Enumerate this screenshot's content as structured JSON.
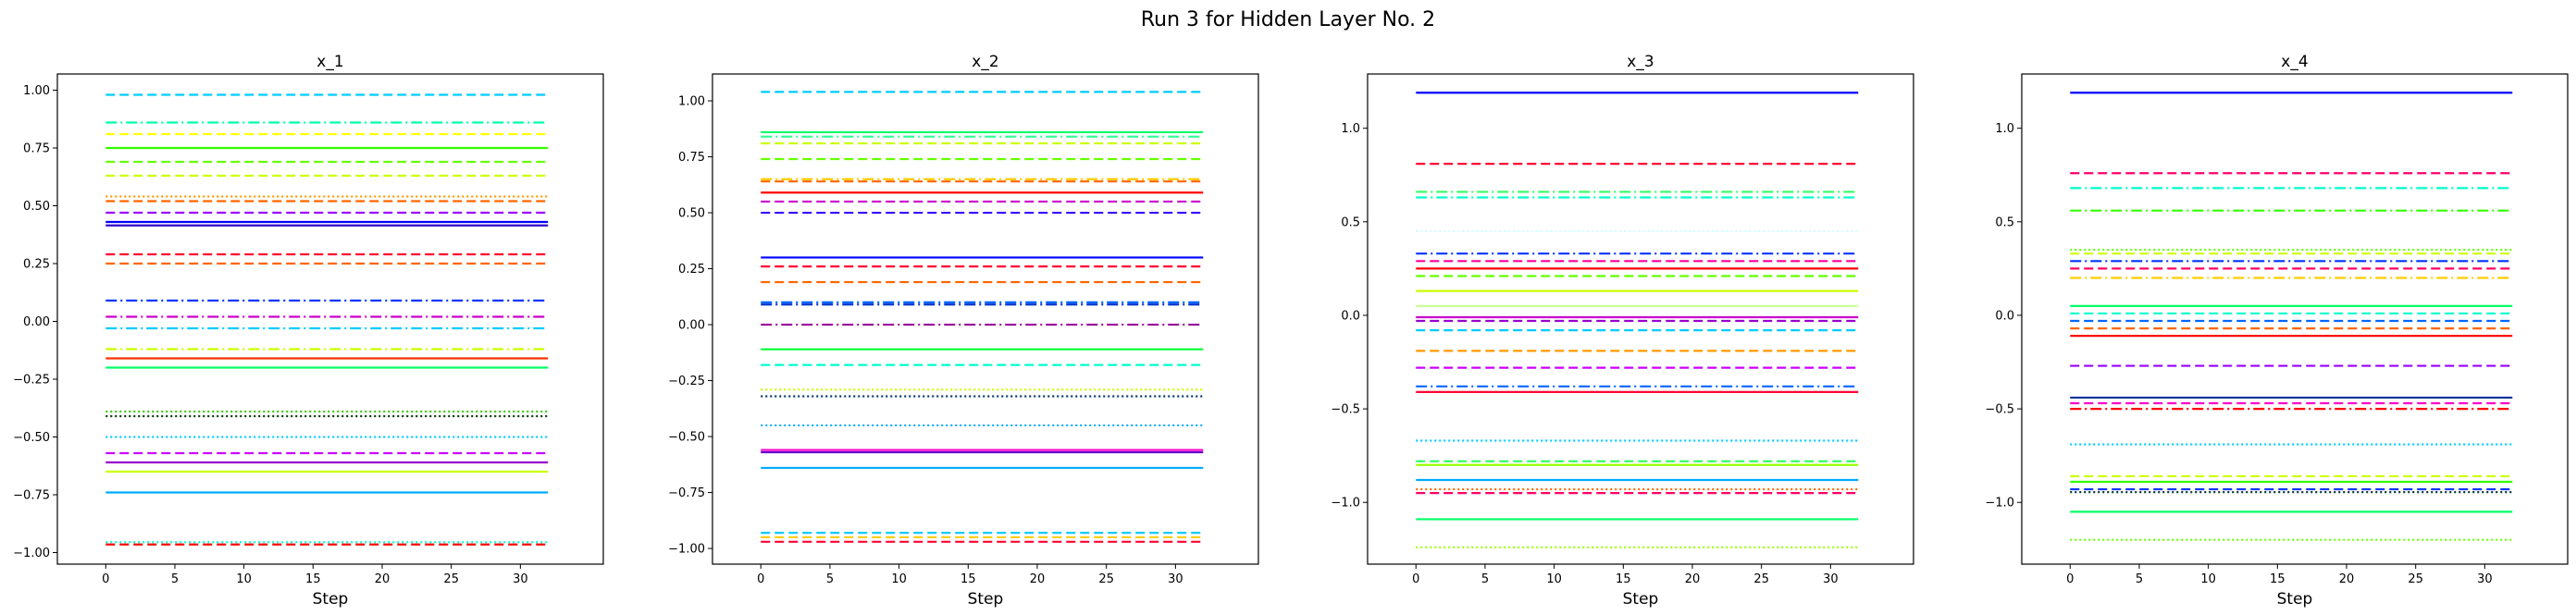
{
  "figure": {
    "suptitle": "Run 3 for Hidden Layer No. 2"
  },
  "chart_data": [
    {
      "type": "line",
      "title": "x_1",
      "xlabel": "Step",
      "ylabel": "",
      "xlim": [
        -3.5,
        36
      ],
      "ylim": [
        -1.05,
        1.07
      ],
      "xticks": [
        0,
        5,
        10,
        15,
        20,
        25,
        30
      ],
      "yticks": [
        -1.0,
        -0.75,
        -0.5,
        -0.25,
        0.0,
        0.25,
        0.5,
        0.75,
        1.0
      ],
      "ytick_labels": [
        "−1.00",
        "−0.75",
        "−0.50",
        "−0.25",
        "0.00",
        "0.25",
        "0.50",
        "0.75",
        "1.00"
      ],
      "x_range": [
        0,
        32
      ],
      "series": [
        {
          "value": 0.98,
          "color": "#00ccff",
          "dash": "dashed"
        },
        {
          "value": 0.86,
          "color": "#00ffaa",
          "dash": "dashdot"
        },
        {
          "value": 0.81,
          "color": "#ffff00",
          "dash": "dashed"
        },
        {
          "value": 0.75,
          "color": "#33ff00",
          "dash": "solid"
        },
        {
          "value": 0.69,
          "color": "#66ff00",
          "dash": "dashed"
        },
        {
          "value": 0.63,
          "color": "#ccff00",
          "dash": "dashed"
        },
        {
          "value": 0.54,
          "color": "#ff9900",
          "dash": "dotted"
        },
        {
          "value": 0.52,
          "color": "#ff6600",
          "dash": "dashed"
        },
        {
          "value": 0.47,
          "color": "#9900ff",
          "dash": "dashed"
        },
        {
          "value": 0.43,
          "color": "#0000ff",
          "dash": "solid"
        },
        {
          "value": 0.415,
          "color": "#3300cc",
          "dash": "solid"
        },
        {
          "value": 0.29,
          "color": "#ff0033",
          "dash": "dashed"
        },
        {
          "value": 0.25,
          "color": "#ff6600",
          "dash": "dashed"
        },
        {
          "value": 0.09,
          "color": "#0033ff",
          "dash": "dashdot"
        },
        {
          "value": 0.02,
          "color": "#cc00cc",
          "dash": "dashdot"
        },
        {
          "value": -0.03,
          "color": "#00ccff",
          "dash": "dashdot"
        },
        {
          "value": -0.12,
          "color": "#ccff00",
          "dash": "dashdot"
        },
        {
          "value": -0.16,
          "color": "#ff3300",
          "dash": "solid"
        },
        {
          "value": -0.2,
          "color": "#00ff66",
          "dash": "solid"
        },
        {
          "value": -0.39,
          "color": "#33cc00",
          "dash": "dotted"
        },
        {
          "value": -0.41,
          "color": "#003300",
          "dash": "dotted"
        },
        {
          "value": -0.5,
          "color": "#00ccff",
          "dash": "dotted"
        },
        {
          "value": -0.57,
          "color": "#cc00ff",
          "dash": "dashed"
        },
        {
          "value": -0.61,
          "color": "#9900cc",
          "dash": "solid"
        },
        {
          "value": -0.65,
          "color": "#ccff00",
          "dash": "solid"
        },
        {
          "value": -0.74,
          "color": "#00aaff",
          "dash": "solid"
        },
        {
          "value": -0.955,
          "color": "#00ffcc",
          "dash": "dotted"
        },
        {
          "value": -0.965,
          "color": "#ff0000",
          "dash": "dashed"
        }
      ]
    },
    {
      "type": "line",
      "title": "x_2",
      "xlabel": "Step",
      "ylabel": "",
      "xlim": [
        -3.5,
        36
      ],
      "ylim": [
        -1.07,
        1.12
      ],
      "xticks": [
        0,
        5,
        10,
        15,
        20,
        25,
        30
      ],
      "yticks": [
        -1.0,
        -0.75,
        -0.5,
        -0.25,
        0.0,
        0.25,
        0.5,
        0.75,
        1.0
      ],
      "ytick_labels": [
        "−1.00",
        "−0.75",
        "−0.50",
        "−0.25",
        "0.00",
        "0.25",
        "0.50",
        "0.75",
        "1.00"
      ],
      "x_range": [
        0,
        32
      ],
      "series": [
        {
          "value": 1.04,
          "color": "#00ccff",
          "dash": "dashed"
        },
        {
          "value": 0.86,
          "color": "#00ff66",
          "dash": "solid"
        },
        {
          "value": 0.84,
          "color": "#33ff99",
          "dash": "dashdot"
        },
        {
          "value": 0.81,
          "color": "#ccff00",
          "dash": "dashed"
        },
        {
          "value": 0.74,
          "color": "#66ff00",
          "dash": "dashed"
        },
        {
          "value": 0.65,
          "color": "#ffcc00",
          "dash": "dashdot"
        },
        {
          "value": 0.64,
          "color": "#ff6600",
          "dash": "dashed"
        },
        {
          "value": 0.59,
          "color": "#ff0000",
          "dash": "solid"
        },
        {
          "value": 0.55,
          "color": "#cc00cc",
          "dash": "dashed"
        },
        {
          "value": 0.5,
          "color": "#3300ff",
          "dash": "dashed"
        },
        {
          "value": 0.3,
          "color": "#0000ff",
          "dash": "solid"
        },
        {
          "value": 0.26,
          "color": "#ff0033",
          "dash": "dashed"
        },
        {
          "value": 0.19,
          "color": "#ff6600",
          "dash": "dashed"
        },
        {
          "value": 0.1,
          "color": "#0066ff",
          "dash": "dashdot"
        },
        {
          "value": 0.09,
          "color": "#0033cc",
          "dash": "dashdot"
        },
        {
          "value": 0.0,
          "color": "#990099",
          "dash": "dashdot"
        },
        {
          "value": -0.11,
          "color": "#00ff33",
          "dash": "solid"
        },
        {
          "value": -0.18,
          "color": "#00ffcc",
          "dash": "dashed"
        },
        {
          "value": -0.29,
          "color": "#ccff00",
          "dash": "dotted"
        },
        {
          "value": -0.32,
          "color": "#003366",
          "dash": "dotted"
        },
        {
          "value": -0.45,
          "color": "#00aaff",
          "dash": "dotted"
        },
        {
          "value": -0.56,
          "color": "#ff00cc",
          "dash": "solid"
        },
        {
          "value": -0.57,
          "color": "#6600cc",
          "dash": "solid"
        },
        {
          "value": -0.64,
          "color": "#00aaff",
          "dash": "solid"
        },
        {
          "value": -0.93,
          "color": "#00ccff",
          "dash": "dashed"
        },
        {
          "value": -0.95,
          "color": "#ffcc00",
          "dash": "dashed"
        },
        {
          "value": -0.97,
          "color": "#ff0033",
          "dash": "dashed"
        }
      ]
    },
    {
      "type": "line",
      "title": "x_3",
      "xlabel": "Step",
      "ylabel": "",
      "xlim": [
        -3.5,
        36
      ],
      "ylim": [
        -1.33,
        1.29
      ],
      "xticks": [
        0,
        5,
        10,
        15,
        20,
        25,
        30
      ],
      "yticks": [
        -1.0,
        -0.5,
        0.0,
        0.5,
        1.0
      ],
      "ytick_labels": [
        "−1.0",
        "−0.5",
        "0.0",
        "0.5",
        "1.0"
      ],
      "x_range": [
        0,
        32
      ],
      "series": [
        {
          "value": 1.19,
          "color": "#0000ff",
          "dash": "solid"
        },
        {
          "value": 0.81,
          "color": "#ff0033",
          "dash": "dashed"
        },
        {
          "value": 0.66,
          "color": "#33ff66",
          "dash": "dashdot"
        },
        {
          "value": 0.63,
          "color": "#00ffcc",
          "dash": "dashdot"
        },
        {
          "value": 0.45,
          "color": "#ccffff",
          "dash": "dotted"
        },
        {
          "value": 0.33,
          "color": "#0033ff",
          "dash": "dashdot"
        },
        {
          "value": 0.29,
          "color": "#ff0099",
          "dash": "dashed"
        },
        {
          "value": 0.25,
          "color": "#ff0000",
          "dash": "solid"
        },
        {
          "value": 0.21,
          "color": "#66ff00",
          "dash": "dashed"
        },
        {
          "value": 0.13,
          "color": "#ccff00",
          "dash": "solid"
        },
        {
          "value": 0.05,
          "color": "#ccff99",
          "dash": "solid"
        },
        {
          "value": -0.01,
          "color": "#cc00cc",
          "dash": "solid"
        },
        {
          "value": -0.03,
          "color": "#9900cc",
          "dash": "dashed"
        },
        {
          "value": -0.08,
          "color": "#00ccff",
          "dash": "dashed"
        },
        {
          "value": -0.19,
          "color": "#ff9900",
          "dash": "dashed"
        },
        {
          "value": -0.28,
          "color": "#cc00ff",
          "dash": "dashed"
        },
        {
          "value": -0.38,
          "color": "#0066ff",
          "dash": "dashdot"
        },
        {
          "value": -0.41,
          "color": "#ff0033",
          "dash": "solid"
        },
        {
          "value": -0.67,
          "color": "#00ccff",
          "dash": "dotted"
        },
        {
          "value": -0.78,
          "color": "#33ff66",
          "dash": "dashed"
        },
        {
          "value": -0.8,
          "color": "#99ff00",
          "dash": "solid"
        },
        {
          "value": -0.88,
          "color": "#00aaff",
          "dash": "solid"
        },
        {
          "value": -0.93,
          "color": "#ff6600",
          "dash": "dotted"
        },
        {
          "value": -0.95,
          "color": "#ff0066",
          "dash": "dashed"
        },
        {
          "value": -1.09,
          "color": "#00ff66",
          "dash": "solid"
        },
        {
          "value": -1.24,
          "color": "#99ff00",
          "dash": "dotted"
        }
      ]
    },
    {
      "type": "line",
      "title": "x_4",
      "xlabel": "Step",
      "ylabel": "",
      "xlim": [
        -3.5,
        36
      ],
      "ylim": [
        -1.33,
        1.29
      ],
      "xticks": [
        0,
        5,
        10,
        15,
        20,
        25,
        30
      ],
      "yticks": [
        -1.0,
        -0.5,
        0.0,
        0.5,
        1.0
      ],
      "ytick_labels": [
        "−1.0",
        "−0.5",
        "0.0",
        "0.5",
        "1.0"
      ],
      "x_range": [
        0,
        32
      ],
      "series": [
        {
          "value": 1.19,
          "color": "#0000ff",
          "dash": "solid"
        },
        {
          "value": 0.76,
          "color": "#ff0066",
          "dash": "dashed"
        },
        {
          "value": 0.68,
          "color": "#00ffcc",
          "dash": "dashdot"
        },
        {
          "value": 0.56,
          "color": "#33ff00",
          "dash": "dashdot"
        },
        {
          "value": 0.35,
          "color": "#66ff00",
          "dash": "dotted"
        },
        {
          "value": 0.33,
          "color": "#ccff00",
          "dash": "dashed"
        },
        {
          "value": 0.29,
          "color": "#0033ff",
          "dash": "dashdot"
        },
        {
          "value": 0.25,
          "color": "#ff0066",
          "dash": "dashed"
        },
        {
          "value": 0.2,
          "color": "#ffcc00",
          "dash": "dashdot"
        },
        {
          "value": 0.05,
          "color": "#00ff66",
          "dash": "solid"
        },
        {
          "value": 0.01,
          "color": "#00ffcc",
          "dash": "dashed"
        },
        {
          "value": -0.03,
          "color": "#0066ff",
          "dash": "dashed"
        },
        {
          "value": -0.07,
          "color": "#ff6600",
          "dash": "dashed"
        },
        {
          "value": -0.11,
          "color": "#ff0000",
          "dash": "solid"
        },
        {
          "value": -0.27,
          "color": "#9900ff",
          "dash": "dashed"
        },
        {
          "value": -0.44,
          "color": "#003399",
          "dash": "solid"
        },
        {
          "value": -0.47,
          "color": "#ff00cc",
          "dash": "dashed"
        },
        {
          "value": -0.5,
          "color": "#ff0000",
          "dash": "dashdot"
        },
        {
          "value": -0.69,
          "color": "#00ccff",
          "dash": "dotted"
        },
        {
          "value": -0.86,
          "color": "#ccff00",
          "dash": "dashed"
        },
        {
          "value": -0.89,
          "color": "#33ff00",
          "dash": "solid"
        },
        {
          "value": -0.93,
          "color": "#0033ff",
          "dash": "dashed"
        },
        {
          "value": -0.945,
          "color": "#003333",
          "dash": "dotted"
        },
        {
          "value": -1.05,
          "color": "#00ff66",
          "dash": "solid"
        },
        {
          "value": -1.2,
          "color": "#66ff00",
          "dash": "dotted"
        }
      ]
    }
  ]
}
